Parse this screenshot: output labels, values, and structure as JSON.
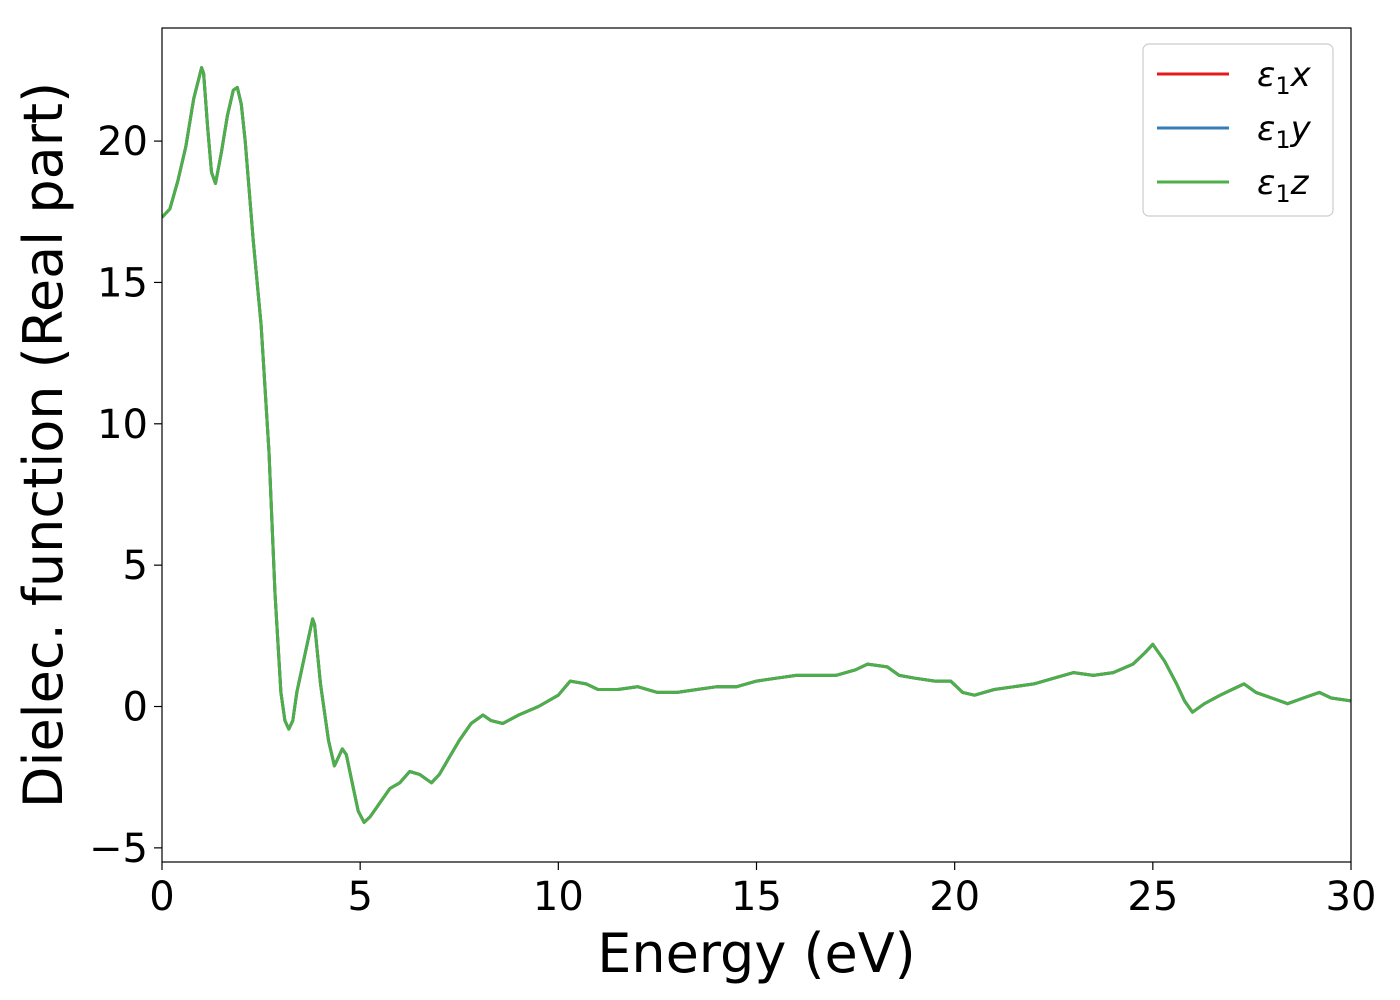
{
  "chart_data": {
    "type": "line",
    "title": "",
    "xlabel": "Energy (eV)",
    "ylabel": "Dielec. function (Real part)",
    "xlim": [
      0,
      30
    ],
    "ylim": [
      -5.5,
      24
    ],
    "xticks": [
      0,
      5,
      10,
      15,
      20,
      25,
      30
    ],
    "xtick_labels": [
      "0",
      "5",
      "10",
      "15",
      "20",
      "25",
      "30"
    ],
    "yticks": [
      -5,
      0,
      5,
      10,
      15,
      20
    ],
    "ytick_labels": [
      "−5",
      "0",
      "5",
      "10",
      "15",
      "20"
    ],
    "grid": false,
    "legend_position": "top-right",
    "x": [
      0,
      0.2,
      0.4,
      0.6,
      0.8,
      1.0,
      1.05,
      1.15,
      1.25,
      1.35,
      1.5,
      1.65,
      1.8,
      1.9,
      2.0,
      2.1,
      2.3,
      2.5,
      2.7,
      2.85,
      3.0,
      3.1,
      3.2,
      3.3,
      3.4,
      3.6,
      3.8,
      3.85,
      4.0,
      4.2,
      4.35,
      4.45,
      4.55,
      4.65,
      4.8,
      4.95,
      5.1,
      5.25,
      5.5,
      5.75,
      6.0,
      6.25,
      6.5,
      6.8,
      7.0,
      7.25,
      7.5,
      7.8,
      8.1,
      8.3,
      8.6,
      9.0,
      9.5,
      10.0,
      10.3,
      10.7,
      11.0,
      11.5,
      12.0,
      12.5,
      13.0,
      13.5,
      14.0,
      14.5,
      15.0,
      15.5,
      16.0,
      16.5,
      17.0,
      17.5,
      17.8,
      18.3,
      18.6,
      19.0,
      19.5,
      19.9,
      20.2,
      20.5,
      21.0,
      21.5,
      22.0,
      22.5,
      23.0,
      23.5,
      24.0,
      24.5,
      24.8,
      25.0,
      25.3,
      25.6,
      25.8,
      26.0,
      26.3,
      26.7,
      27.0,
      27.3,
      27.6,
      28.0,
      28.4,
      28.8,
      29.2,
      29.5,
      30.0
    ],
    "series": [
      {
        "name": "ε₁x",
        "color": "#e41a1c",
        "values": [
          17.3,
          17.6,
          18.6,
          19.8,
          21.5,
          22.6,
          22.4,
          20.5,
          18.9,
          18.5,
          19.6,
          20.9,
          21.8,
          21.9,
          21.3,
          20.0,
          16.5,
          13.5,
          9.0,
          4.0,
          0.5,
          -0.5,
          -0.8,
          -0.5,
          0.5,
          1.8,
          3.1,
          2.9,
          0.8,
          -1.2,
          -2.1,
          -1.8,
          -1.5,
          -1.7,
          -2.7,
          -3.7,
          -4.1,
          -3.9,
          -3.4,
          -2.9,
          -2.7,
          -2.3,
          -2.4,
          -2.7,
          -2.4,
          -1.8,
          -1.2,
          -0.6,
          -0.3,
          -0.5,
          -0.6,
          -0.3,
          0.0,
          0.4,
          0.9,
          0.8,
          0.6,
          0.6,
          0.7,
          0.5,
          0.5,
          0.6,
          0.7,
          0.7,
          0.9,
          1.0,
          1.1,
          1.1,
          1.1,
          1.3,
          1.5,
          1.4,
          1.1,
          1.0,
          0.9,
          0.9,
          0.5,
          0.4,
          0.6,
          0.7,
          0.8,
          1.0,
          1.2,
          1.1,
          1.2,
          1.5,
          1.9,
          2.2,
          1.6,
          0.8,
          0.2,
          -0.2,
          0.1,
          0.4,
          0.6,
          0.8,
          0.5,
          0.3,
          0.1,
          0.3,
          0.5,
          0.3,
          0.2
        ]
      },
      {
        "name": "ε₁y",
        "color": "#377eb8",
        "values": [
          17.3,
          17.6,
          18.6,
          19.8,
          21.5,
          22.6,
          22.4,
          20.5,
          18.9,
          18.5,
          19.6,
          20.9,
          21.8,
          21.9,
          21.3,
          20.0,
          16.5,
          13.5,
          9.0,
          4.0,
          0.5,
          -0.5,
          -0.8,
          -0.5,
          0.5,
          1.8,
          3.1,
          2.9,
          0.8,
          -1.2,
          -2.1,
          -1.8,
          -1.5,
          -1.7,
          -2.7,
          -3.7,
          -4.1,
          -3.9,
          -3.4,
          -2.9,
          -2.7,
          -2.3,
          -2.4,
          -2.7,
          -2.4,
          -1.8,
          -1.2,
          -0.6,
          -0.3,
          -0.5,
          -0.6,
          -0.3,
          0.0,
          0.4,
          0.9,
          0.8,
          0.6,
          0.6,
          0.7,
          0.5,
          0.5,
          0.6,
          0.7,
          0.7,
          0.9,
          1.0,
          1.1,
          1.1,
          1.1,
          1.3,
          1.5,
          1.4,
          1.1,
          1.0,
          0.9,
          0.9,
          0.5,
          0.4,
          0.6,
          0.7,
          0.8,
          1.0,
          1.2,
          1.1,
          1.2,
          1.5,
          1.9,
          2.2,
          1.6,
          0.8,
          0.2,
          -0.2,
          0.1,
          0.4,
          0.6,
          0.8,
          0.5,
          0.3,
          0.1,
          0.3,
          0.5,
          0.3,
          0.2
        ]
      },
      {
        "name": "ε₁z",
        "color": "#4daf4a",
        "values": [
          17.3,
          17.6,
          18.6,
          19.8,
          21.5,
          22.6,
          22.4,
          20.5,
          18.9,
          18.5,
          19.6,
          20.9,
          21.8,
          21.9,
          21.3,
          20.0,
          16.5,
          13.5,
          9.0,
          4.0,
          0.5,
          -0.5,
          -0.8,
          -0.5,
          0.5,
          1.8,
          3.1,
          2.9,
          0.8,
          -1.2,
          -2.1,
          -1.8,
          -1.5,
          -1.7,
          -2.7,
          -3.7,
          -4.1,
          -3.9,
          -3.4,
          -2.9,
          -2.7,
          -2.3,
          -2.4,
          -2.7,
          -2.4,
          -1.8,
          -1.2,
          -0.6,
          -0.3,
          -0.5,
          -0.6,
          -0.3,
          0.0,
          0.4,
          0.9,
          0.8,
          0.6,
          0.6,
          0.7,
          0.5,
          0.5,
          0.6,
          0.7,
          0.7,
          0.9,
          1.0,
          1.1,
          1.1,
          1.1,
          1.3,
          1.5,
          1.4,
          1.1,
          1.0,
          0.9,
          0.9,
          0.5,
          0.4,
          0.6,
          0.7,
          0.8,
          1.0,
          1.2,
          1.1,
          1.2,
          1.5,
          1.9,
          2.2,
          1.6,
          0.8,
          0.2,
          -0.2,
          0.1,
          0.4,
          0.6,
          0.8,
          0.5,
          0.3,
          0.1,
          0.3,
          0.5,
          0.3,
          0.2
        ]
      }
    ],
    "legend": [
      {
        "symbol": "ε",
        "sub": "1",
        "axis": "x"
      },
      {
        "symbol": "ε",
        "sub": "1",
        "axis": "y"
      },
      {
        "symbol": "ε",
        "sub": "1",
        "axis": "z"
      }
    ]
  }
}
